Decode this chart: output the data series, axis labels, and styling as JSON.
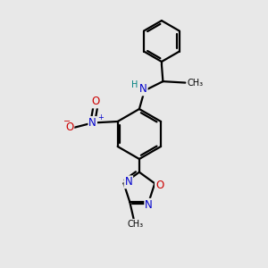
{
  "background_color": "#e8e8e8",
  "line_color": "#000000",
  "bond_width": 1.6,
  "atom_colors": {
    "N": "#0000cc",
    "O": "#cc0000",
    "H": "#008080",
    "C": "#000000"
  },
  "font_size_atoms": 8.5,
  "font_size_small": 7.0
}
